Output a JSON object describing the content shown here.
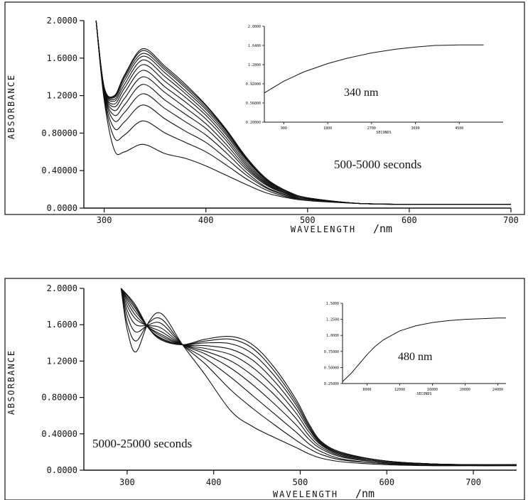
{
  "chart_data": [
    {
      "type": "line",
      "panel": "top",
      "annotation": "500-5000 seconds",
      "xlabel": "WAVELENGTH",
      "xunit": "/nm",
      "ylabel": "ABSORBANCE",
      "xlim": [
        280,
        700
      ],
      "ylim": [
        0,
        2.0
      ],
      "x_ticks": [
        "300",
        "400",
        "500",
        "600",
        "700"
      ],
      "y_ticks": [
        "0.0000",
        "0.40000",
        "0.80000",
        "1.2000",
        "1.6000",
        "2.0000"
      ],
      "x": [
        292,
        300,
        310,
        320,
        338,
        360,
        380,
        400,
        420,
        440,
        460,
        480,
        500,
        550,
        600,
        650,
        700
      ],
      "series": [
        {
          "values": [
            2.0,
            1.15,
            0.62,
            0.6,
            0.68,
            0.58,
            0.53,
            0.45,
            0.35,
            0.25,
            0.16,
            0.11,
            0.08,
            0.05,
            0.04,
            0.04,
            0.04
          ]
        },
        {
          "values": [
            2.0,
            1.18,
            0.75,
            0.78,
            0.93,
            0.8,
            0.7,
            0.6,
            0.46,
            0.31,
            0.19,
            0.12,
            0.09,
            0.05,
            0.04,
            0.04,
            0.04
          ]
        },
        {
          "values": [
            2.0,
            1.2,
            0.85,
            0.92,
            1.1,
            0.95,
            0.82,
            0.7,
            0.53,
            0.35,
            0.21,
            0.13,
            0.09,
            0.05,
            0.04,
            0.04,
            0.04
          ]
        },
        {
          "values": [
            2.0,
            1.22,
            0.93,
            1.02,
            1.22,
            1.06,
            0.92,
            0.78,
            0.59,
            0.38,
            0.22,
            0.14,
            0.09,
            0.05,
            0.04,
            0.04,
            0.04
          ]
        },
        {
          "values": [
            2.0,
            1.23,
            0.99,
            1.1,
            1.32,
            1.15,
            1.0,
            0.85,
            0.64,
            0.41,
            0.24,
            0.15,
            0.1,
            0.05,
            0.04,
            0.04,
            0.04
          ]
        },
        {
          "values": [
            2.0,
            1.24,
            1.04,
            1.17,
            1.4,
            1.23,
            1.07,
            0.9,
            0.68,
            0.43,
            0.25,
            0.15,
            0.1,
            0.05,
            0.04,
            0.04,
            0.04
          ]
        },
        {
          "values": [
            2.0,
            1.25,
            1.08,
            1.23,
            1.47,
            1.29,
            1.13,
            0.95,
            0.72,
            0.45,
            0.26,
            0.16,
            0.1,
            0.05,
            0.04,
            0.04,
            0.04
          ]
        },
        {
          "values": [
            2.0,
            1.26,
            1.11,
            1.28,
            1.53,
            1.35,
            1.18,
            0.99,
            0.75,
            0.47,
            0.27,
            0.16,
            0.1,
            0.05,
            0.04,
            0.04,
            0.04
          ]
        },
        {
          "values": [
            2.0,
            1.27,
            1.14,
            1.32,
            1.58,
            1.4,
            1.22,
            1.02,
            0.78,
            0.49,
            0.28,
            0.17,
            0.11,
            0.05,
            0.04,
            0.04,
            0.04
          ]
        },
        {
          "values": [
            2.0,
            1.28,
            1.16,
            1.36,
            1.62,
            1.44,
            1.25,
            1.05,
            0.8,
            0.51,
            0.29,
            0.17,
            0.11,
            0.05,
            0.04,
            0.04,
            0.04
          ]
        },
        {
          "values": [
            2.0,
            1.28,
            1.18,
            1.39,
            1.65,
            1.47,
            1.28,
            1.07,
            0.82,
            0.52,
            0.3,
            0.18,
            0.11,
            0.05,
            0.04,
            0.04,
            0.04
          ]
        },
        {
          "values": [
            2.0,
            1.29,
            1.19,
            1.41,
            1.68,
            1.49,
            1.3,
            1.09,
            0.83,
            0.53,
            0.3,
            0.18,
            0.11,
            0.05,
            0.04,
            0.04,
            0.04
          ]
        },
        {
          "values": [
            2.0,
            1.29,
            1.2,
            1.42,
            1.7,
            1.51,
            1.32,
            1.1,
            0.84,
            0.54,
            0.31,
            0.18,
            0.11,
            0.05,
            0.04,
            0.04,
            0.04
          ]
        }
      ],
      "inset": {
        "label": "340 nm",
        "xlabel": "SECONDS",
        "x_ticks": [
          "900",
          "1800",
          "2700",
          "3600",
          "4500"
        ],
        "y_ticks": [
          "0.20000",
          "0.56000",
          "0.92000",
          "1.2800",
          "1.6400",
          "2.0000"
        ],
        "xlim": [
          500,
          5400
        ],
        "ylim": [
          0.2,
          2.0
        ],
        "x": [
          500,
          900,
          1300,
          1800,
          2200,
          2700,
          3200,
          3600,
          4000,
          4500,
          5000
        ],
        "y": [
          0.75,
          0.97,
          1.14,
          1.3,
          1.4,
          1.5,
          1.57,
          1.61,
          1.64,
          1.65,
          1.65
        ]
      }
    },
    {
      "type": "line",
      "panel": "bottom",
      "annotation": "5000-25000 seconds",
      "xlabel": "WAVELENGTH",
      "xunit": "/nm",
      "ylabel": "ABSORBANCE",
      "xlim": [
        250,
        750
      ],
      "ylim": [
        0,
        2.0
      ],
      "x_ticks": [
        "300",
        "400",
        "500",
        "600",
        "700"
      ],
      "y_ticks": [
        "0.0000",
        "0.40000",
        "0.80000",
        "1.2000",
        "1.6000",
        "2.0000"
      ],
      "x": [
        293,
        300,
        310,
        325,
        340,
        364,
        390,
        420,
        445,
        470,
        495,
        510,
        525,
        550,
        600,
        650,
        700,
        750
      ],
      "series": [
        {
          "values": [
            2.0,
            1.55,
            1.3,
            1.63,
            1.72,
            1.38,
            1.05,
            0.65,
            0.48,
            0.36,
            0.25,
            0.18,
            0.13,
            0.09,
            0.06,
            0.05,
            0.05,
            0.05
          ]
        },
        {
          "values": [
            2.0,
            1.62,
            1.42,
            1.62,
            1.66,
            1.38,
            1.17,
            0.88,
            0.68,
            0.5,
            0.33,
            0.24,
            0.17,
            0.11,
            0.07,
            0.05,
            0.05,
            0.05
          ]
        },
        {
          "values": [
            2.0,
            1.7,
            1.52,
            1.6,
            1.61,
            1.38,
            1.23,
            1.02,
            0.82,
            0.62,
            0.42,
            0.29,
            0.2,
            0.12,
            0.07,
            0.06,
            0.05,
            0.05
          ]
        },
        {
          "values": [
            2.0,
            1.76,
            1.6,
            1.59,
            1.56,
            1.38,
            1.28,
            1.12,
            0.94,
            0.73,
            0.5,
            0.34,
            0.23,
            0.14,
            0.08,
            0.06,
            0.05,
            0.05
          ]
        },
        {
          "values": [
            2.0,
            1.81,
            1.66,
            1.58,
            1.52,
            1.38,
            1.31,
            1.2,
            1.04,
            0.83,
            0.57,
            0.38,
            0.25,
            0.15,
            0.08,
            0.06,
            0.06,
            0.05
          ]
        },
        {
          "values": [
            2.0,
            1.85,
            1.7,
            1.57,
            1.49,
            1.38,
            1.34,
            1.27,
            1.13,
            0.91,
            0.63,
            0.42,
            0.27,
            0.16,
            0.09,
            0.06,
            0.06,
            0.06
          ]
        },
        {
          "values": [
            2.0,
            1.88,
            1.74,
            1.57,
            1.47,
            1.38,
            1.37,
            1.33,
            1.21,
            0.98,
            0.68,
            0.45,
            0.28,
            0.17,
            0.09,
            0.07,
            0.06,
            0.06
          ]
        },
        {
          "values": [
            2.0,
            1.9,
            1.77,
            1.56,
            1.45,
            1.38,
            1.4,
            1.39,
            1.28,
            1.04,
            0.72,
            0.47,
            0.29,
            0.18,
            0.1,
            0.07,
            0.06,
            0.06
          ]
        },
        {
          "values": [
            2.0,
            1.92,
            1.79,
            1.56,
            1.44,
            1.38,
            1.42,
            1.44,
            1.34,
            1.09,
            0.75,
            0.49,
            0.3,
            0.18,
            0.1,
            0.07,
            0.06,
            0.06
          ]
        },
        {
          "values": [
            2.0,
            1.93,
            1.81,
            1.56,
            1.43,
            1.38,
            1.44,
            1.47,
            1.38,
            1.13,
            0.78,
            0.51,
            0.31,
            0.19,
            0.1,
            0.07,
            0.06,
            0.06
          ]
        }
      ],
      "inset": {
        "label": "480 nm",
        "xlabel": "SECONDS",
        "x_ticks": [
          "8000",
          "12000",
          "16000",
          "20000",
          "24000"
        ],
        "y_ticks": [
          "0.25000",
          "0.50000",
          "0.75000",
          "1.0000",
          "1.2500",
          "1.5000"
        ],
        "xlim": [
          5000,
          25000
        ],
        "ylim": [
          0.25,
          1.5
        ],
        "x": [
          5000,
          6000,
          7000,
          8000,
          9000,
          10000,
          12000,
          14000,
          16000,
          18000,
          20000,
          22000,
          24000,
          25000
        ],
        "y": [
          0.28,
          0.4,
          0.55,
          0.7,
          0.83,
          0.93,
          1.07,
          1.15,
          1.2,
          1.23,
          1.25,
          1.26,
          1.27,
          1.27
        ]
      }
    }
  ]
}
